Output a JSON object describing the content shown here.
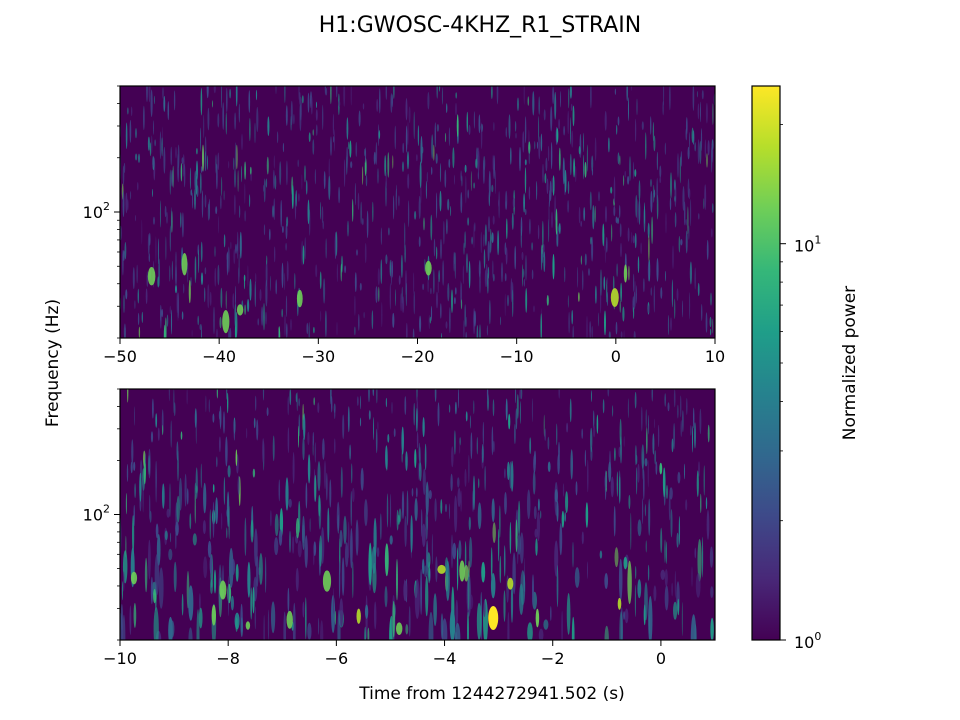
{
  "figure": {
    "title": "H1:GWOSC-4KHZ_R1_STRAIN",
    "shared_ylabel": "Frequency (Hz)",
    "xlabel": "Time from 1244272941.502 (s)"
  },
  "chart_data": [
    {
      "type": "heatmap",
      "name": "top-spectrogram",
      "xlim": [
        -50,
        10
      ],
      "xticks": [
        -50,
        -40,
        -30,
        -20,
        -10,
        0,
        10
      ],
      "xtick_labels": [
        "−50",
        "−40",
        "−30",
        "−20",
        "−10",
        "0",
        "10"
      ],
      "ylim": [
        20,
        500
      ],
      "yscale": "log",
      "ytick_value": 100,
      "ytick_label_base": "10",
      "ytick_label_exp": "2",
      "ylabel": "Frequency (Hz)",
      "texture": "fine vertical streaks, mostly dark purple with scattered teal and occasional light-green spots"
    },
    {
      "type": "heatmap",
      "name": "bottom-spectrogram",
      "xlim": [
        -10,
        1
      ],
      "xticks": [
        -10,
        -8,
        -6,
        -4,
        -2,
        0
      ],
      "xtick_labels": [
        "−10",
        "−8",
        "−6",
        "−4",
        "−2",
        "0"
      ],
      "ylim": [
        20,
        500
      ],
      "yscale": "log",
      "ytick_value": 100,
      "ytick_label_base": "10",
      "ytick_label_exp": "2",
      "xlabel": "Time from 1244272941.502 (s)",
      "texture": "elongated vertical streaks, teal/green blobs concentrated at low frequencies, bright yellow spot near -3.1 s"
    }
  ],
  "colorbar": {
    "label": "Normalized power",
    "scale": "log",
    "range": [
      1,
      25
    ],
    "colormap": "viridis",
    "tick_labels": [
      {
        "value": 1,
        "base": "10",
        "exp": "0"
      },
      {
        "value": 10,
        "base": "10",
        "exp": "1"
      }
    ],
    "colors": [
      "#440154",
      "#482878",
      "#3e4989",
      "#31688e",
      "#26828e",
      "#1f9e89",
      "#35b779",
      "#6ece58",
      "#b5de2b",
      "#fde725"
    ]
  }
}
